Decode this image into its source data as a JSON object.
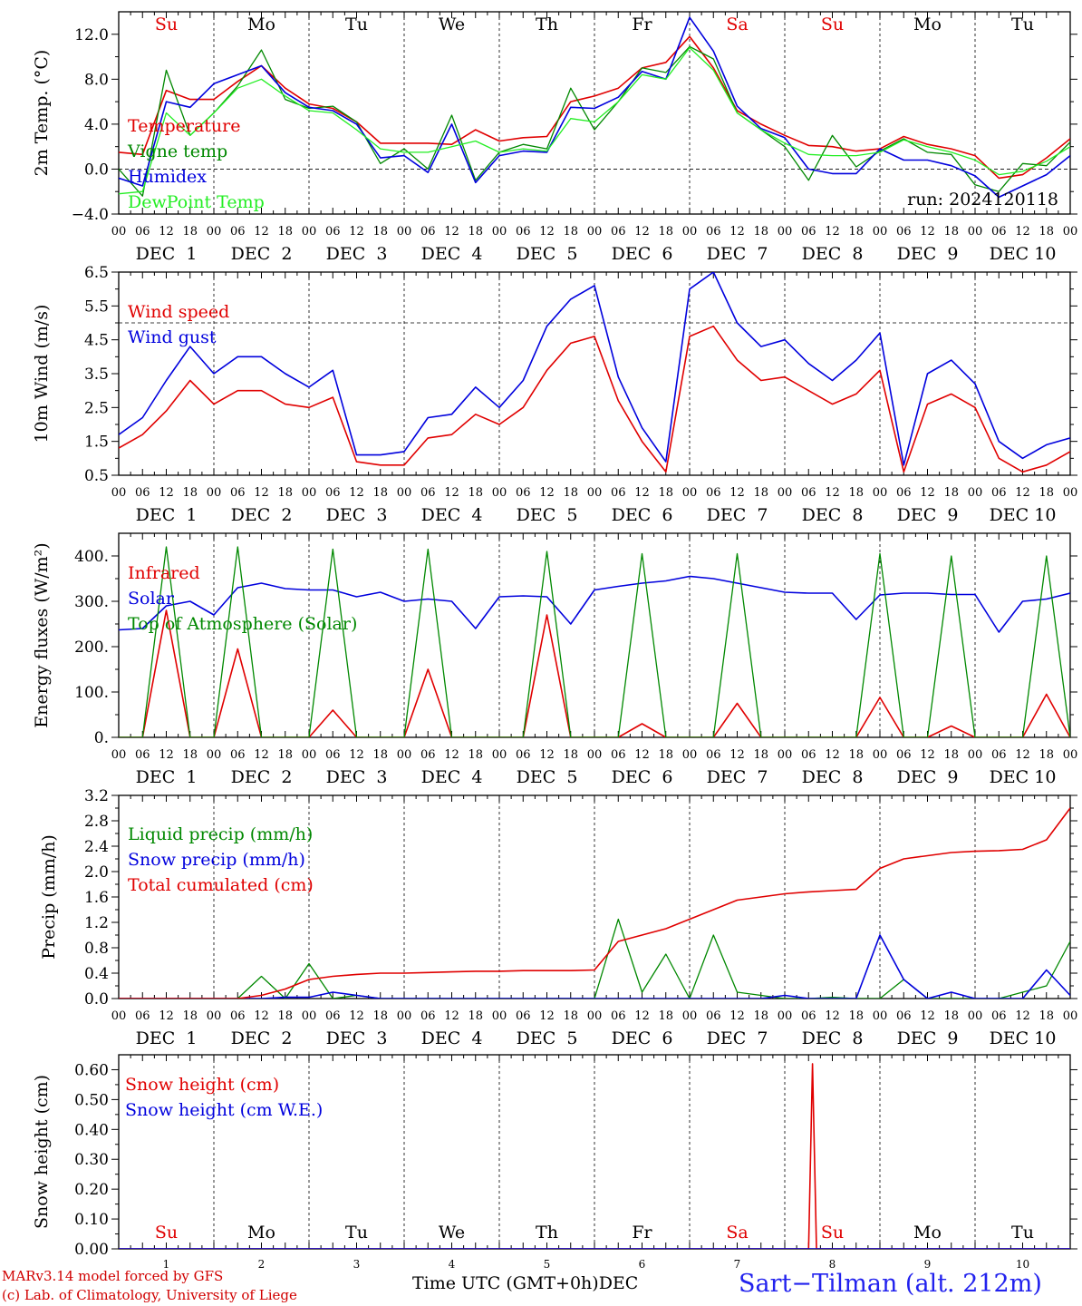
{
  "colors": {
    "red": "#e00000",
    "green": "#008800",
    "blue": "#0000dd",
    "lightgreen": "#22ee22",
    "dayRed": "#e00000",
    "dayBlack": "#000000"
  },
  "days": [
    "Su",
    "Mo",
    "Tu",
    "We",
    "Th",
    "Fr",
    "Sa",
    "Su",
    "Mo",
    "Tu"
  ],
  "day_red": [
    true,
    false,
    false,
    false,
    false,
    false,
    true,
    true,
    false,
    false
  ],
  "hour_ticks": [
    "00",
    "06",
    "12",
    "18"
  ],
  "date_labels": [
    "DEC  1",
    "DEC  2",
    "DEC  3",
    "DEC  4",
    "DEC  5",
    "DEC  6",
    "DEC  7",
    "DEC  8",
    "DEC  9",
    "DEC 10"
  ],
  "bottom_day_numbers": [
    "1",
    "2",
    "3",
    "4",
    "5",
    "6",
    "7",
    "8",
    "9",
    "10"
  ],
  "footer": {
    "model": "MARv3.14 model forced by GFS",
    "copyright": "(c) Lab. of Climatology, University of Liege",
    "xlabel": "Time UTC (GMT+0h)",
    "month": "DEC",
    "station": "Sart−Tilman (alt. 212m)"
  },
  "chart_data": [
    {
      "type": "line",
      "ylabel": "2m Temp. (°C)",
      "ylim": [
        -4,
        14
      ],
      "yticks": [
        "−4.0",
        "0.0",
        "4.0",
        "8.0",
        "12.0"
      ],
      "ytick_values": [
        -4,
        0,
        4,
        8,
        12
      ],
      "hline": 0,
      "run_label": "run: 2024120118",
      "legend": [
        "Temperature",
        "Vigne temp",
        "Humidex",
        "DewPoint Temp"
      ],
      "x_hours": [
        0,
        6,
        12,
        18,
        24,
        30,
        36,
        42,
        48,
        54,
        60,
        66,
        72,
        78,
        84,
        90,
        96,
        102,
        108,
        114,
        120,
        126,
        132,
        138,
        144,
        150,
        156,
        162,
        168,
        174,
        180,
        186,
        192,
        198,
        204,
        210,
        216,
        222,
        228,
        234,
        240
      ],
      "series": [
        {
          "name": "Temperature",
          "color": "red",
          "values": [
            1.5,
            1.3,
            7.0,
            6.2,
            6.2,
            7.8,
            9.2,
            7.2,
            5.8,
            5.4,
            4.2,
            2.3,
            2.3,
            2.3,
            2.2,
            3.5,
            2.5,
            2.8,
            2.9,
            6.0,
            6.5,
            7.2,
            9.0,
            9.5,
            11.8,
            9.0,
            5.2,
            4.0,
            3.0,
            2.1,
            2.0,
            1.6,
            1.8,
            2.9,
            2.2,
            1.8,
            1.2,
            -0.8,
            -0.5,
            1.0,
            2.7
          ]
        },
        {
          "name": "Vigne temp",
          "color": "green",
          "values": [
            0,
            -2.4,
            8.8,
            3.0,
            5.0,
            7.4,
            10.6,
            6.2,
            5.4,
            5.6,
            4.2,
            0.5,
            1.8,
            0,
            4.8,
            -1.0,
            1.5,
            2.2,
            1.8,
            7.2,
            3.5,
            6.0,
            9.0,
            8.6,
            10.9,
            9.8,
            5.0,
            3.5,
            2.0,
            -1.0,
            3.0,
            0.2,
            1.6,
            2.7,
            1.5,
            1.3,
            -1.4,
            -2.0,
            0.5,
            0.3,
            2.4
          ]
        },
        {
          "name": "Humidex",
          "color": "blue",
          "values": [
            -0.8,
            -1.5,
            6.0,
            5.5,
            7.6,
            8.4,
            9.2,
            6.8,
            5.5,
            5.2,
            4.0,
            1.0,
            1.2,
            -0.3,
            4.0,
            -1.2,
            1.2,
            1.6,
            1.5,
            5.5,
            5.4,
            6.4,
            8.7,
            8.0,
            13.5,
            10.5,
            5.6,
            3.6,
            2.8,
            0,
            -0.4,
            -0.4,
            1.8,
            0.8,
            0.8,
            0.3,
            -0.6,
            -2.5,
            -1.5,
            -0.5,
            1.2
          ]
        },
        {
          "name": "DewPoint Temp",
          "color": "lightgreen",
          "values": [
            -2.2,
            -2.0,
            5.0,
            3.0,
            5.0,
            7.2,
            8.0,
            6.5,
            5.2,
            5.0,
            3.5,
            1.8,
            1.5,
            1.5,
            2.0,
            2.5,
            1.5,
            1.8,
            1.6,
            4.5,
            4.2,
            6.0,
            8.4,
            8.0,
            10.8,
            8.8,
            5.0,
            3.5,
            2.3,
            1.3,
            1.2,
            1.2,
            1.5,
            2.6,
            2.0,
            1.5,
            0.8,
            -0.5,
            -0.2,
            0.7,
            2.0
          ]
        }
      ]
    },
    {
      "type": "line",
      "ylabel": "10m Wind (m/s)",
      "ylim": [
        0.5,
        6.5
      ],
      "yticks": [
        "0.5",
        "1.5",
        "2.5",
        "3.5",
        "4.5",
        "5.5",
        "6.5"
      ],
      "ytick_values": [
        0.5,
        1.5,
        2.5,
        3.5,
        4.5,
        5.5,
        6.5
      ],
      "hline": 5,
      "legend": [
        "Wind speed",
        "Wind gust"
      ],
      "x_hours": [
        0,
        6,
        12,
        18,
        24,
        30,
        36,
        42,
        48,
        54,
        60,
        66,
        72,
        78,
        84,
        90,
        96,
        102,
        108,
        114,
        120,
        126,
        132,
        138,
        144,
        150,
        156,
        162,
        168,
        174,
        180,
        186,
        192,
        198,
        204,
        210,
        216,
        222,
        228,
        234,
        240
      ],
      "series": [
        {
          "name": "Wind speed",
          "color": "red",
          "values": [
            1.3,
            1.7,
            2.4,
            3.3,
            2.6,
            3.0,
            3.0,
            2.6,
            2.5,
            2.8,
            0.9,
            0.8,
            0.8,
            1.6,
            1.7,
            2.3,
            2.0,
            2.5,
            3.6,
            4.4,
            4.6,
            2.7,
            1.5,
            0.6,
            4.6,
            4.9,
            3.9,
            3.3,
            3.4,
            3.0,
            2.6,
            2.9,
            3.6,
            0.6,
            2.6,
            2.9,
            2.5,
            1.0,
            0.6,
            0.8,
            1.2
          ]
        },
        {
          "name": "Wind gust",
          "color": "blue",
          "values": [
            1.7,
            2.2,
            3.3,
            4.3,
            3.5,
            4.0,
            4.0,
            3.5,
            3.1,
            3.6,
            1.1,
            1.1,
            1.2,
            2.2,
            2.3,
            3.1,
            2.5,
            3.3,
            4.9,
            5.7,
            6.1,
            3.4,
            1.9,
            0.9,
            6.0,
            6.5,
            5.0,
            4.3,
            4.5,
            3.8,
            3.3,
            3.9,
            4.7,
            0.8,
            3.5,
            3.9,
            3.2,
            1.5,
            1.0,
            1.4,
            1.6
          ]
        }
      ]
    },
    {
      "type": "line",
      "ylabel": "Energy fluxes (W/m²)",
      "ylim": [
        0,
        450
      ],
      "yticks": [
        "0.",
        "100.",
        "200.",
        "300.",
        "400."
      ],
      "ytick_values": [
        0,
        100,
        200,
        300,
        400
      ],
      "legend": [
        "Solar",
        "Infrared",
        "Top of Atmosphere (Solar)"
      ],
      "x_hours": [
        0,
        6,
        12,
        18,
        24,
        30,
        36,
        42,
        48,
        54,
        60,
        66,
        72,
        78,
        84,
        90,
        96,
        102,
        108,
        114,
        120,
        126,
        132,
        138,
        144,
        150,
        156,
        162,
        168,
        174,
        180,
        186,
        192,
        198,
        204,
        210,
        216,
        222,
        228,
        234,
        240
      ],
      "series": [
        {
          "name": "Infrared",
          "color": "blue",
          "values": [
            237,
            240,
            290,
            300,
            270,
            330,
            340,
            328,
            325,
            325,
            310,
            320,
            300,
            305,
            300,
            240,
            310,
            312,
            310,
            250,
            325,
            333,
            340,
            345,
            355,
            350,
            340,
            330,
            320,
            318,
            318,
            260,
            314,
            318,
            318,
            315,
            315,
            232,
            300,
            305,
            318
          ]
        },
        {
          "name": "Solar",
          "color": "red",
          "values": [
            0,
            0,
            280,
            0,
            0,
            195,
            0,
            0,
            0,
            60,
            0,
            0,
            0,
            150,
            0,
            0,
            0,
            0,
            270,
            0,
            0,
            0,
            30,
            0,
            0,
            0,
            75,
            0,
            0,
            0,
            0,
            0,
            88,
            0,
            0,
            25,
            0,
            0,
            0,
            95,
            0
          ]
        },
        {
          "name": "Top of Atmosphere (Solar)",
          "color": "green",
          "values": [
            0,
            0,
            420,
            0,
            0,
            420,
            0,
            0,
            0,
            415,
            0,
            0,
            0,
            415,
            0,
            0,
            0,
            0,
            410,
            0,
            0,
            0,
            405,
            0,
            0,
            0,
            405,
            0,
            0,
            0,
            0,
            0,
            405,
            0,
            0,
            400,
            0,
            0,
            0,
            400,
            0
          ]
        }
      ]
    },
    {
      "type": "line",
      "ylabel": "Precip (mm/h)",
      "ylim": [
        0,
        3.2
      ],
      "yticks": [
        "0.0",
        "0.4",
        "0.8",
        "1.2",
        "1.6",
        "2.0",
        "2.4",
        "2.8",
        "3.2"
      ],
      "ytick_values": [
        0,
        0.4,
        0.8,
        1.2,
        1.6,
        2.0,
        2.4,
        2.8,
        3.2
      ],
      "legend": [
        "Liquid precip (mm/h)",
        "Snow precip (mm/h)",
        "Total cumulated (cm)"
      ],
      "x_hours": [
        0,
        6,
        12,
        18,
        24,
        30,
        36,
        42,
        48,
        54,
        60,
        66,
        72,
        78,
        84,
        90,
        96,
        102,
        108,
        114,
        120,
        126,
        132,
        138,
        144,
        150,
        156,
        162,
        168,
        174,
        180,
        186,
        192,
        198,
        204,
        210,
        216,
        222,
        228,
        234,
        240
      ],
      "series": [
        {
          "name": "Liquid precip (mm/h)",
          "color": "green",
          "values": [
            0,
            0,
            0,
            0,
            0,
            0,
            0.35,
            0,
            0.55,
            0,
            0.05,
            0,
            0,
            0,
            0,
            0,
            0,
            0,
            0,
            0,
            0,
            1.25,
            0.1,
            0.7,
            0,
            1.0,
            0.1,
            0.05,
            0,
            0,
            0.02,
            0,
            0,
            0.3,
            0,
            0,
            0,
            0,
            0.1,
            0.2,
            0.9
          ]
        },
        {
          "name": "Snow precip (mm/h)",
          "color": "blue",
          "values": [
            0,
            0,
            0,
            0,
            0,
            0,
            0,
            0.02,
            0.02,
            0.1,
            0.05,
            0,
            0,
            0,
            0,
            0,
            0,
            0,
            0,
            0,
            0,
            0,
            0,
            0,
            0,
            0,
            0,
            0,
            0.05,
            0,
            0,
            0,
            1.0,
            0.3,
            0,
            0.1,
            0,
            0,
            0,
            0.45,
            0.05
          ]
        },
        {
          "name": "Total cumulated (cm)",
          "color": "red",
          "values": [
            0,
            0,
            0,
            0,
            0,
            0,
            0.05,
            0.15,
            0.3,
            0.35,
            0.38,
            0.4,
            0.4,
            0.41,
            0.42,
            0.43,
            0.43,
            0.44,
            0.44,
            0.44,
            0.45,
            0.9,
            1.0,
            1.1,
            1.25,
            1.4,
            1.55,
            1.6,
            1.65,
            1.68,
            1.7,
            1.72,
            2.05,
            2.2,
            2.25,
            2.3,
            2.32,
            2.33,
            2.35,
            2.5,
            3.0
          ]
        }
      ]
    },
    {
      "type": "line",
      "ylabel": "Snow height (cm)",
      "ylim": [
        0,
        0.65
      ],
      "yticks": [
        "0.00",
        "0.10",
        "0.20",
        "0.30",
        "0.40",
        "0.50",
        "0.60"
      ],
      "ytick_values": [
        0,
        0.1,
        0.2,
        0.3,
        0.4,
        0.5,
        0.6
      ],
      "legend": [
        "Snow height (cm)",
        "Snow height (cm W.E.)"
      ],
      "x_hours": [
        0,
        170,
        174,
        175,
        176,
        240
      ],
      "series": [
        {
          "name": "Snow height (cm)",
          "color": "red",
          "values": [
            0,
            0,
            0,
            0.62,
            0,
            0
          ]
        },
        {
          "name": "Snow height (cm W.E.)",
          "color": "blue",
          "values": [
            0,
            0,
            0,
            0,
            0,
            0
          ]
        }
      ]
    }
  ]
}
